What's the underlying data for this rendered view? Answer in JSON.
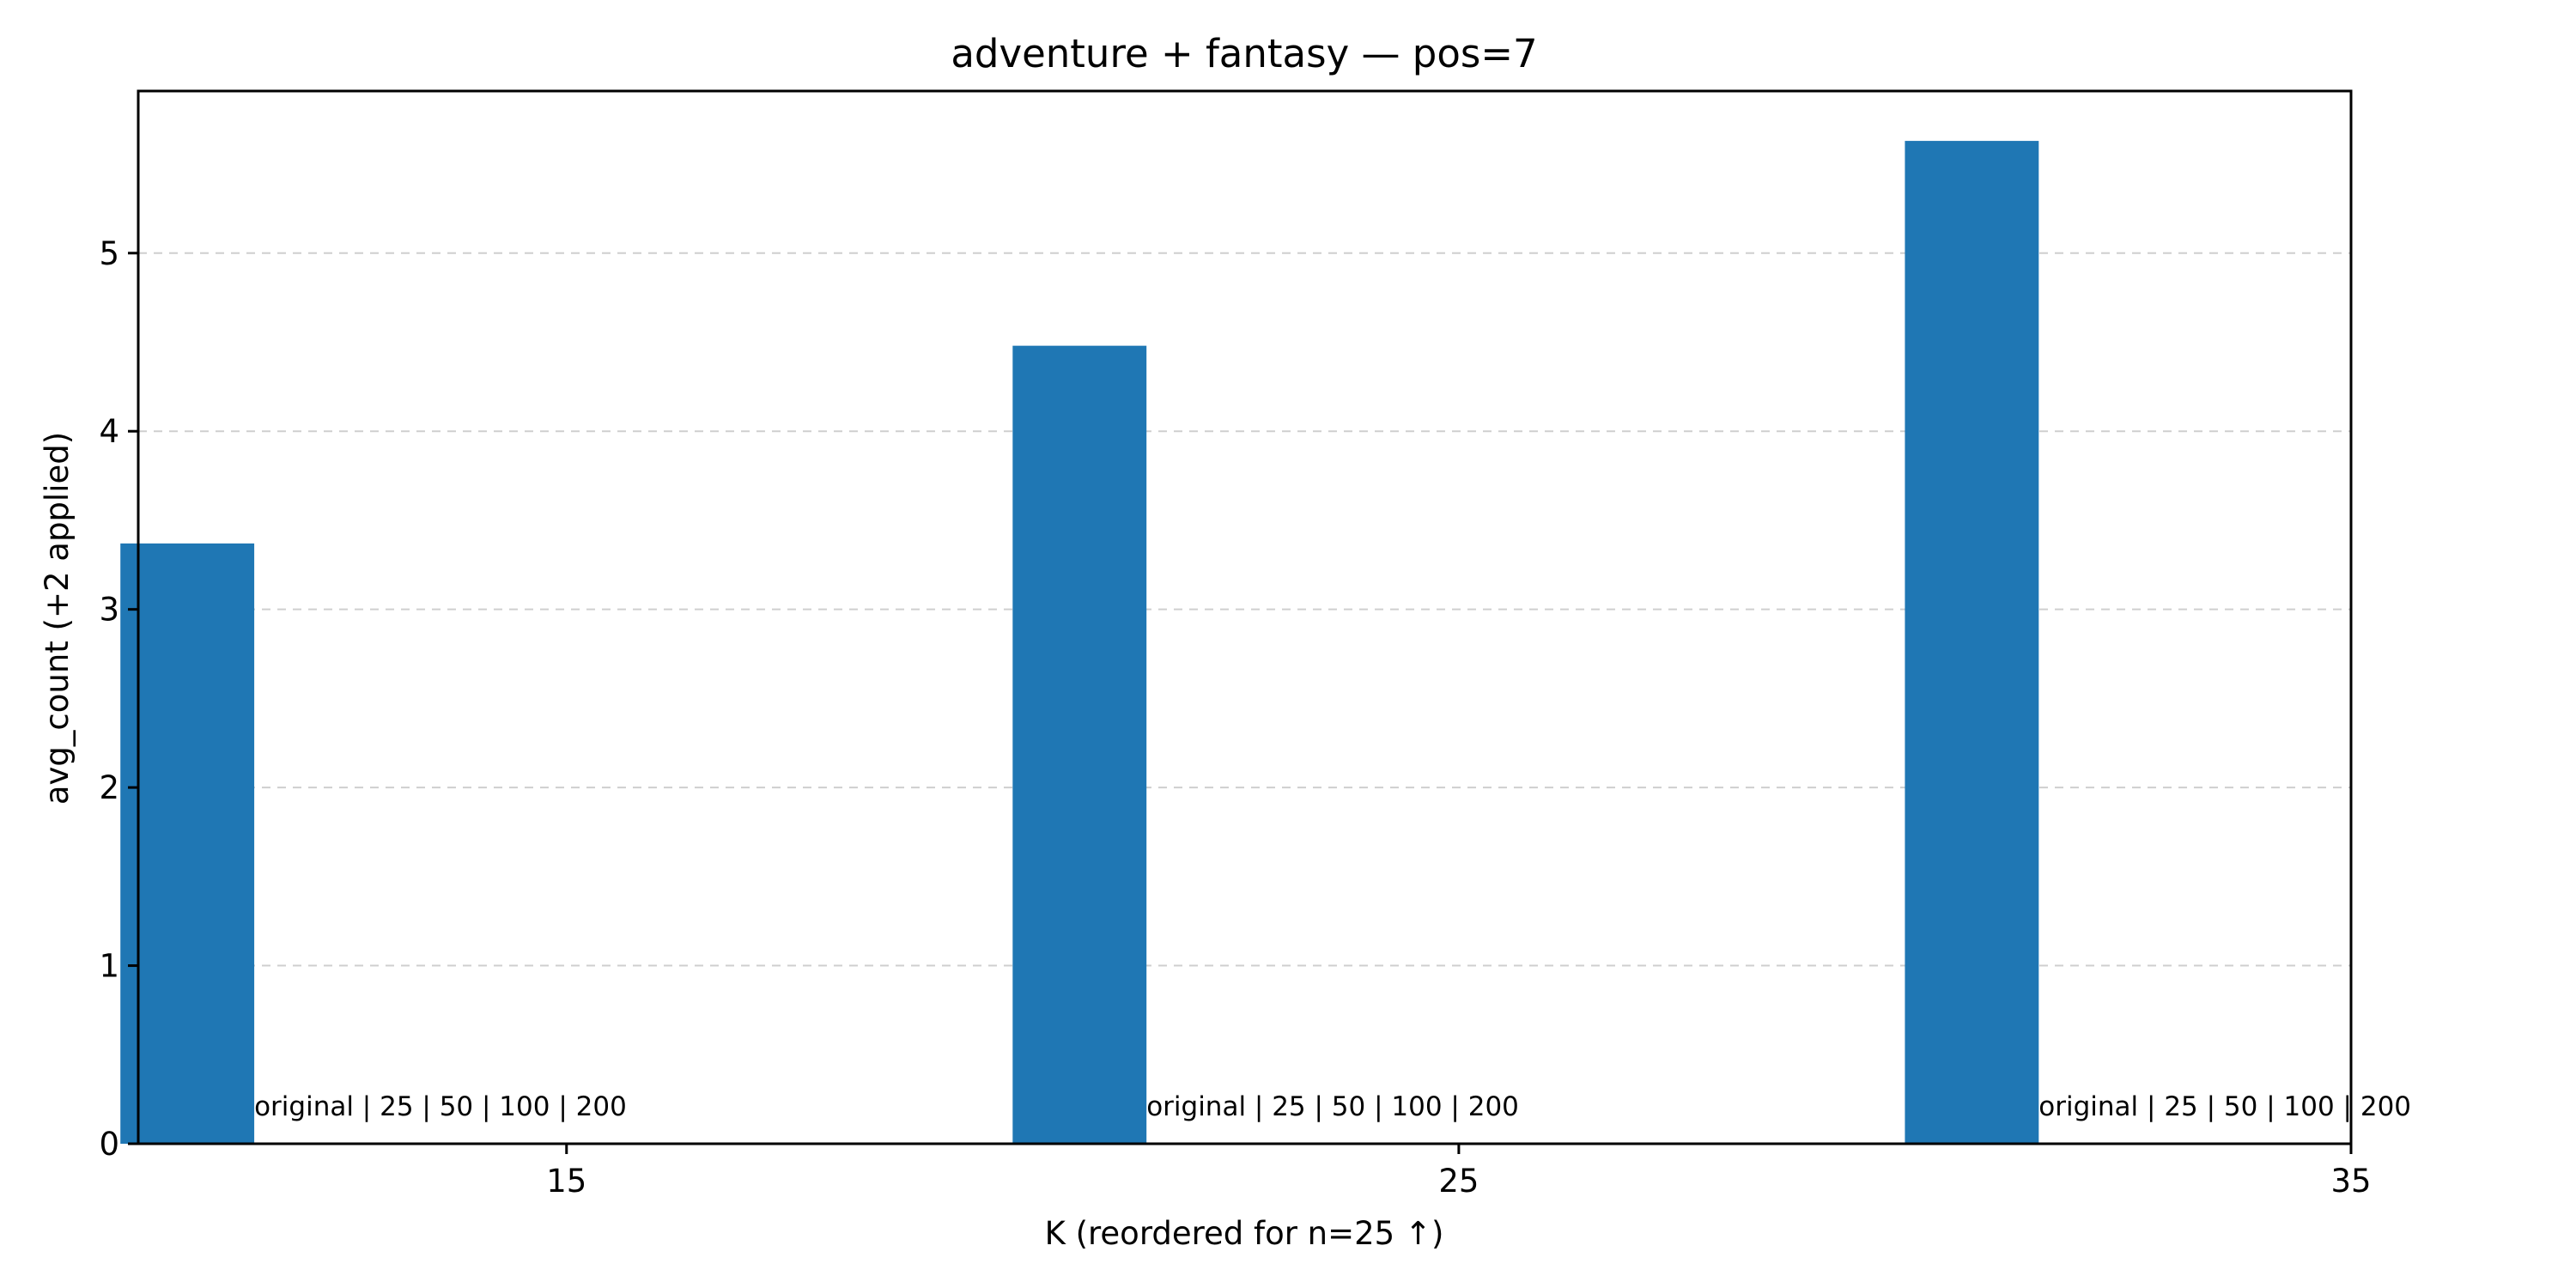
{
  "chart_data": {
    "type": "bar",
    "title": "adventure + fantasy — pos=7",
    "xlabel": "K (reordered for n=25 ↑)",
    "ylabel": "avg_count (+2 applied)",
    "x": [
      15,
      25,
      35
    ],
    "values": [
      3.37,
      4.48,
      5.63
    ],
    "bar_annotations": [
      "original | 25 | 50 | 100 | 200",
      "original | 25 | 50 | 100 | 200",
      "original | 25 | 50 | 100 | 200"
    ],
    "x_ticks": [
      "15",
      "25",
      "35"
    ],
    "y_ticks": [
      "0",
      "1",
      "2",
      "3",
      "4",
      "5"
    ],
    "xlim": [
      10.2,
      35
    ],
    "ylim": [
      0,
      5.91
    ],
    "grid": "y-dashed",
    "legend": "none",
    "bar_color": "#1f77b4"
  }
}
